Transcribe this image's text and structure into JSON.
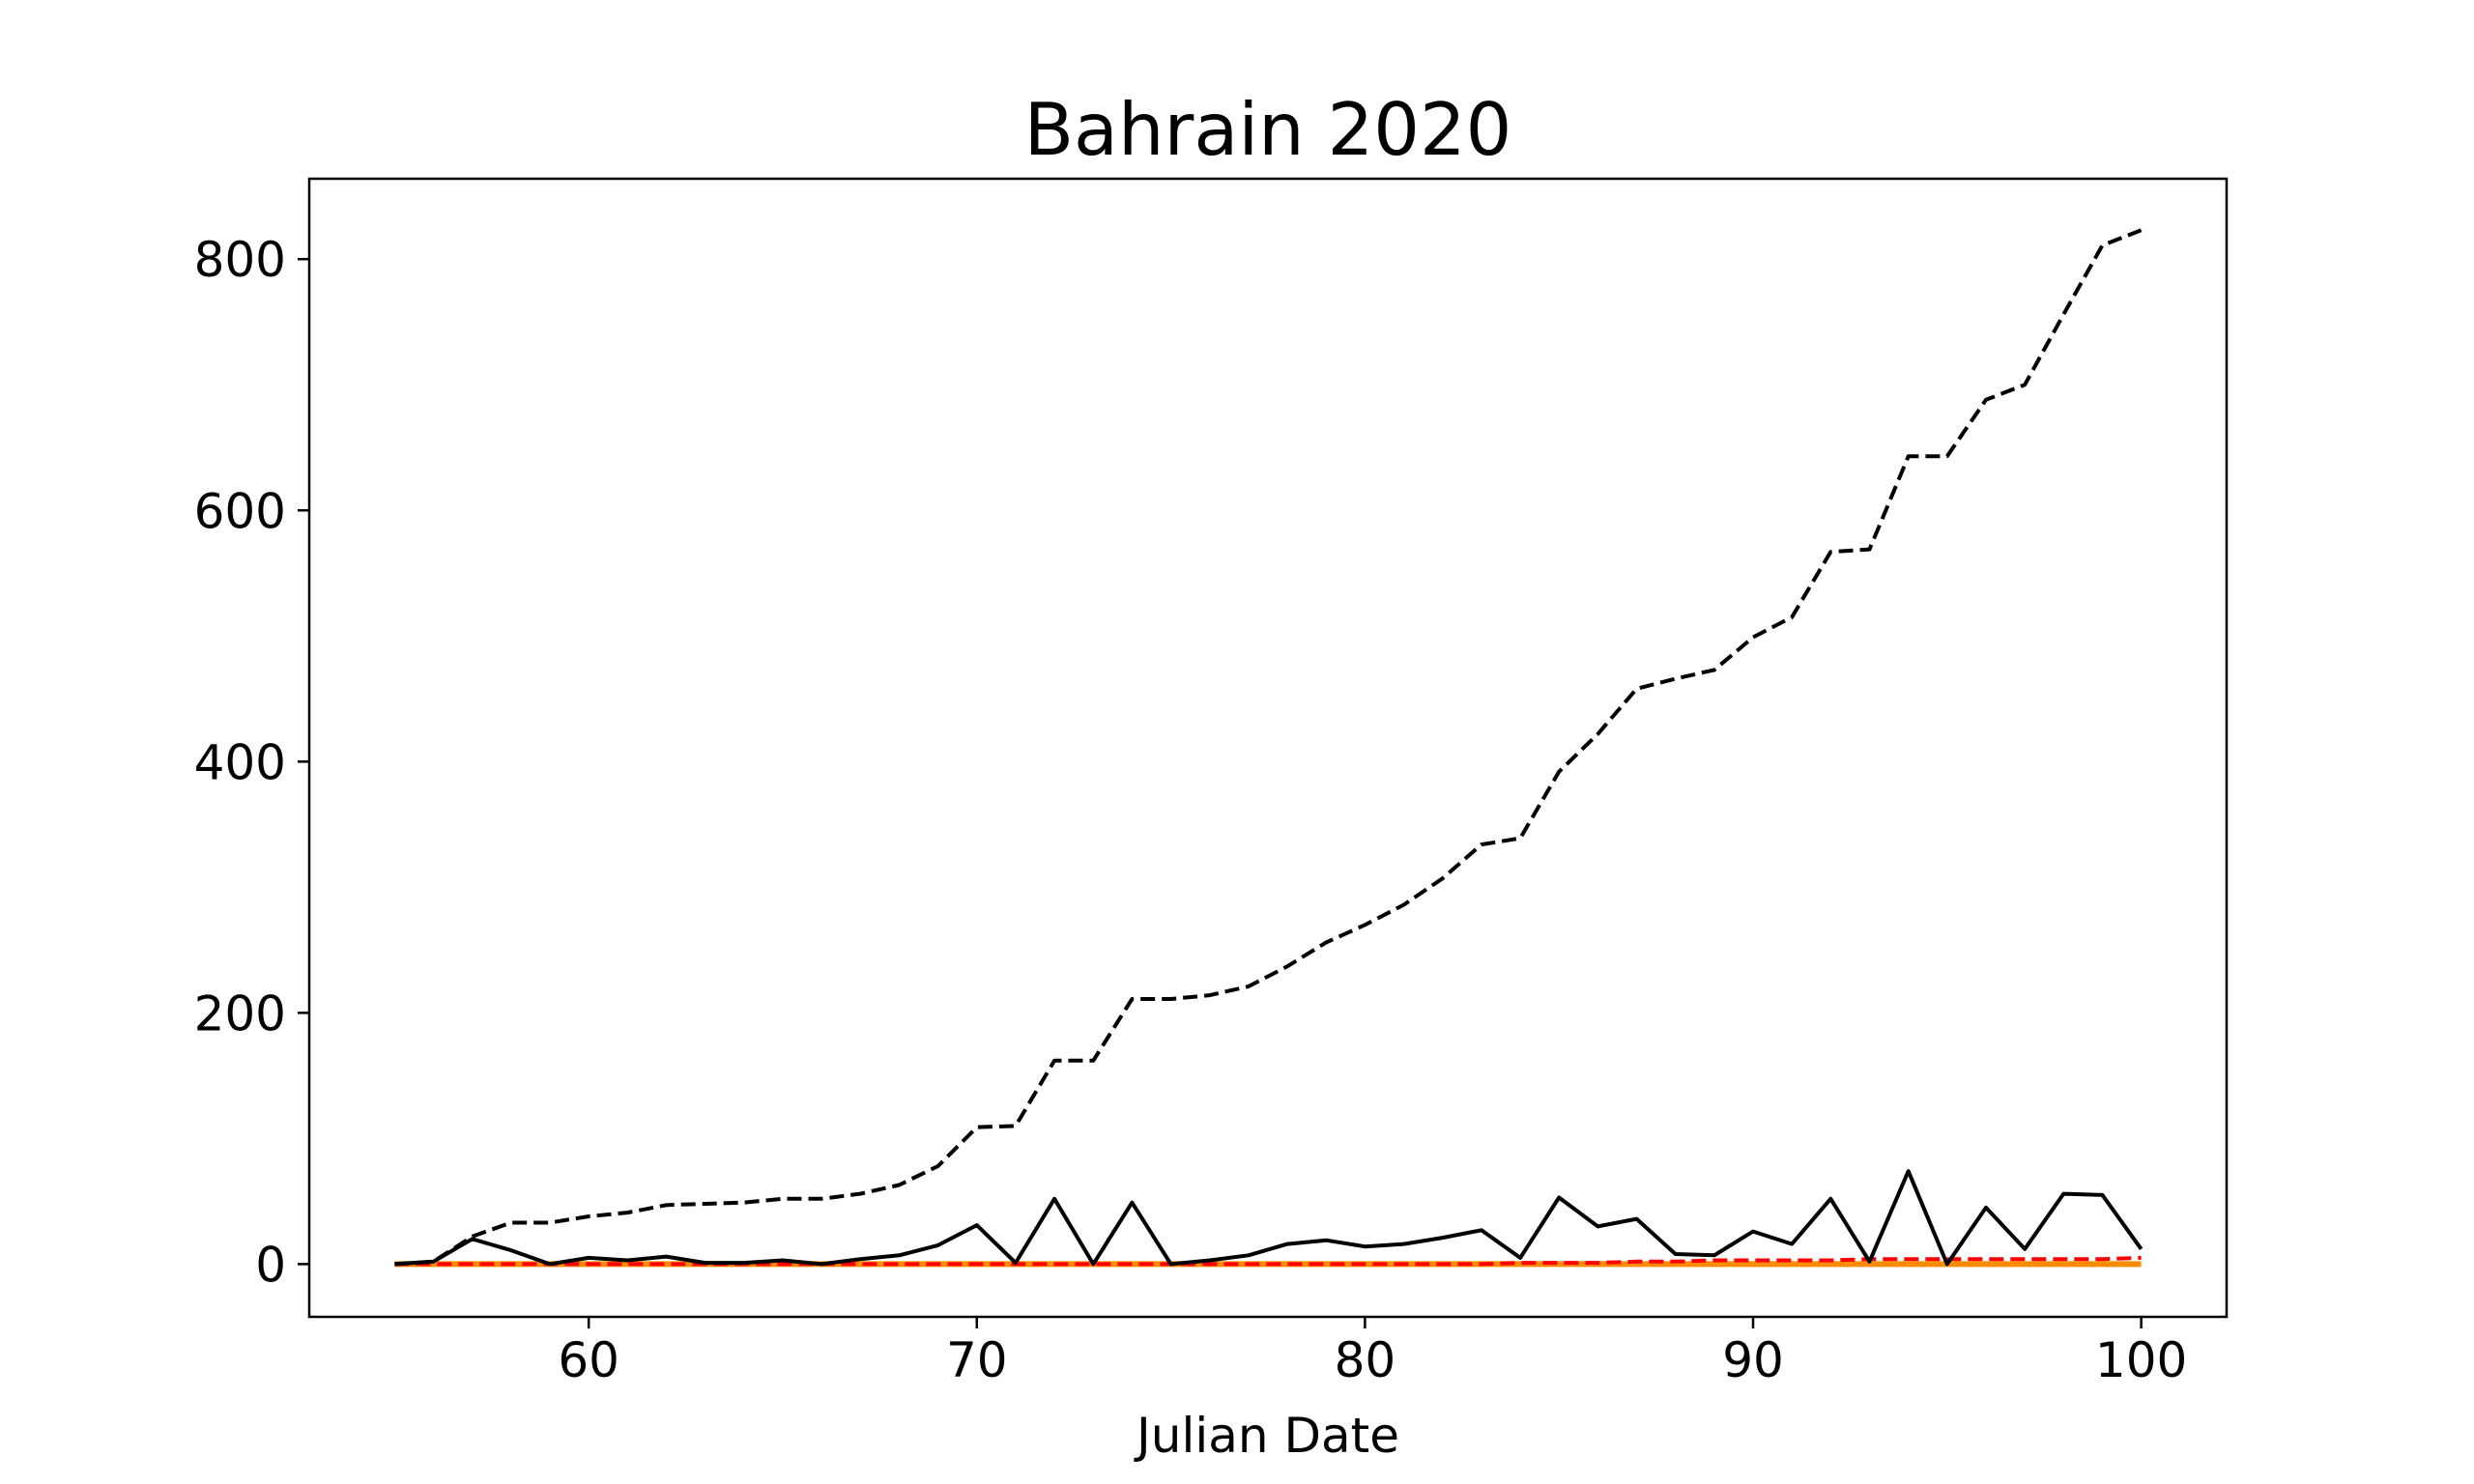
{
  "chart_data": {
    "type": "line",
    "title": "Bahrain 2020",
    "xlabel": "Julian Date",
    "ylabel": "",
    "xlim": [
      52.8,
      102.2
    ],
    "ylim": [
      -42,
      864
    ],
    "xticks": [
      60,
      70,
      80,
      90,
      100
    ],
    "yticks": [
      0,
      200,
      400,
      600,
      800
    ],
    "grid": false,
    "legend": "none",
    "x": [
      55,
      56,
      57,
      58,
      59,
      60,
      61,
      62,
      63,
      64,
      65,
      66,
      67,
      68,
      69,
      70,
      71,
      72,
      73,
      74,
      75,
      76,
      77,
      78,
      79,
      80,
      81,
      82,
      83,
      84,
      85,
      86,
      87,
      88,
      89,
      90,
      91,
      92,
      93,
      94,
      95,
      96,
      97,
      98,
      99,
      100
    ],
    "series": [
      {
        "style": "dashed",
        "color": "#000000",
        "values": [
          0,
          2,
          22,
          33,
          33,
          38,
          41,
          47,
          48,
          49,
          52,
          52,
          56,
          63,
          78,
          109,
          110,
          162,
          162,
          211,
          211,
          214,
          221,
          237,
          256,
          270,
          286,
          307,
          334,
          339,
          392,
          422,
          458,
          466,
          473,
          499,
          515,
          567,
          569,
          643,
          643,
          688,
          700,
          756,
          811,
          823
        ]
      },
      {
        "style": "solid",
        "color": "#000000",
        "values": [
          0,
          2,
          20,
          11,
          0,
          5,
          3,
          6,
          1,
          1,
          3,
          0,
          4,
          7,
          15,
          31,
          1,
          52,
          0,
          49,
          0,
          3,
          7,
          16,
          19,
          14,
          16,
          21,
          27,
          5,
          53,
          30,
          36,
          8,
          7,
          26,
          16,
          52,
          2,
          74,
          0,
          45,
          12,
          56,
          55,
          12
        ]
      },
      {
        "style": "dashed",
        "color": "#ff0000",
        "values": [
          0,
          0,
          0,
          0,
          0,
          0,
          0,
          0,
          0,
          0,
          0,
          0,
          0,
          0,
          0,
          0,
          0,
          0,
          0,
          0,
          0,
          0,
          0,
          0,
          0,
          0,
          0,
          0,
          0,
          1,
          1,
          1,
          2,
          2,
          3,
          3,
          3,
          3,
          4,
          4,
          4,
          4,
          4,
          4,
          4,
          5
        ]
      },
      {
        "style": "solid",
        "color": "#ff8c00",
        "values": [
          0,
          0,
          0,
          0,
          0,
          0,
          0,
          0,
          0,
          0,
          0,
          0,
          0,
          0,
          0,
          0,
          0,
          0,
          0,
          0,
          0,
          0,
          0,
          0,
          0,
          0,
          0,
          0,
          0,
          0,
          0,
          0,
          0,
          0,
          0,
          0,
          0,
          0,
          0,
          0,
          0,
          0,
          0,
          0,
          0,
          0
        ]
      }
    ]
  }
}
